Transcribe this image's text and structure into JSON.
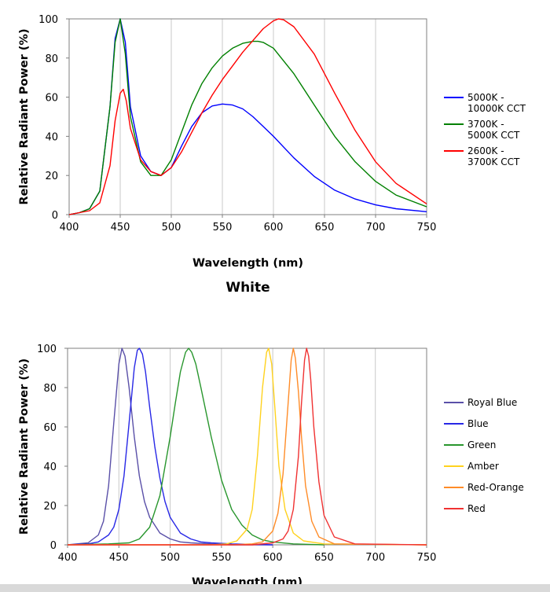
{
  "chart_data": [
    {
      "type": "line",
      "title": "White",
      "xlabel": "Wavelength (nm)",
      "ylabel": "Relative Radiant Power (%)",
      "xlim": [
        400,
        750
      ],
      "ylim": [
        0,
        100
      ],
      "xticks": [
        400,
        450,
        500,
        550,
        600,
        650,
        700,
        750
      ],
      "yticks": [
        0,
        20,
        40,
        60,
        80,
        100
      ],
      "grid": "vertical",
      "legend_position": "right",
      "series": [
        {
          "name": "5000K - 10000K CCT",
          "legend_lines": [
            "5000K -",
            "10000K CCT"
          ],
          "color": "#0000ff",
          "x": [
            400,
            410,
            420,
            430,
            440,
            445,
            450,
            455,
            460,
            470,
            480,
            490,
            500,
            510,
            520,
            530,
            540,
            550,
            560,
            570,
            580,
            590,
            600,
            620,
            640,
            660,
            680,
            700,
            720,
            750
          ],
          "y": [
            0,
            1,
            3,
            12,
            55,
            90,
            100,
            88,
            55,
            30,
            22,
            20,
            24,
            35,
            45,
            52,
            55.5,
            56.5,
            56,
            54,
            50,
            45,
            40,
            29,
            19.5,
            12.5,
            8,
            5,
            3,
            1.5
          ]
        },
        {
          "name": "3700K - 5000K CCT",
          "legend_lines": [
            "3700K -",
            "5000K CCT"
          ],
          "color": "#008000",
          "x": [
            400,
            410,
            420,
            430,
            440,
            445,
            450,
            455,
            460,
            470,
            480,
            490,
            500,
            510,
            520,
            530,
            540,
            550,
            560,
            570,
            580,
            585,
            590,
            600,
            620,
            640,
            660,
            680,
            700,
            720,
            750
          ],
          "y": [
            0,
            1,
            3,
            12,
            55,
            88,
            100,
            82,
            50,
            27,
            20,
            20,
            28,
            42,
            56,
            67,
            75,
            81,
            85,
            87.5,
            88.5,
            88.5,
            88,
            85,
            72,
            56,
            40,
            27,
            17,
            10,
            4
          ]
        },
        {
          "name": "2600K - 3700K CCT",
          "legend_lines": [
            "2600K -",
            "3700K CCT"
          ],
          "color": "#ff0000",
          "x": [
            400,
            410,
            420,
            430,
            440,
            445,
            450,
            453,
            456,
            460,
            470,
            480,
            490,
            500,
            510,
            520,
            530,
            540,
            550,
            560,
            570,
            580,
            590,
            600,
            605,
            610,
            620,
            640,
            660,
            680,
            700,
            720,
            750
          ],
          "y": [
            0,
            1,
            2,
            6,
            25,
            48,
            62,
            64,
            58,
            44,
            28,
            22,
            20,
            24,
            32,
            42,
            52,
            61,
            69,
            76,
            83,
            89,
            95,
            99,
            100,
            99.5,
            96,
            82,
            62,
            43,
            27,
            16,
            5.5
          ]
        }
      ]
    },
    {
      "type": "line",
      "title": "",
      "xlabel": "Wavelength (nm)",
      "ylabel": "Relative Radiant Power (%)",
      "xlim": [
        400,
        750
      ],
      "ylim": [
        0,
        100
      ],
      "xticks": [
        400,
        450,
        500,
        550,
        600,
        650,
        700,
        750
      ],
      "yticks": [
        0,
        20,
        40,
        60,
        80,
        100
      ],
      "grid": "vertical",
      "legend_position": "right",
      "series": [
        {
          "name": "Royal Blue",
          "color": "#5a50a8",
          "x": [
            400,
            420,
            430,
            435,
            440,
            445,
            450,
            453,
            456,
            460,
            465,
            470,
            475,
            480,
            490,
            500,
            510,
            520,
            540,
            560,
            600
          ],
          "y": [
            0,
            1,
            5,
            12,
            30,
            62,
            92,
            100,
            96,
            80,
            55,
            35,
            22,
            14,
            6,
            3,
            1.5,
            1,
            0.5,
            0,
            0
          ]
        },
        {
          "name": "Blue",
          "color": "#2828e6",
          "x": [
            400,
            420,
            430,
            440,
            445,
            450,
            455,
            460,
            465,
            468,
            470,
            473,
            476,
            480,
            485,
            490,
            495,
            500,
            510,
            520,
            530,
            540,
            560,
            600
          ],
          "y": [
            0,
            0.5,
            1.5,
            5,
            9,
            18,
            35,
            62,
            90,
            99,
            100,
            97,
            88,
            70,
            50,
            34,
            22,
            14,
            6,
            3,
            1.5,
            1,
            0.5,
            0
          ]
        },
        {
          "name": "Green",
          "color": "#28962d",
          "x": [
            400,
            440,
            460,
            470,
            480,
            490,
            500,
            505,
            510,
            515,
            518,
            521,
            525,
            530,
            540,
            550,
            560,
            570,
            580,
            590,
            600,
            620,
            650
          ],
          "y": [
            0,
            0.5,
            1,
            3,
            9,
            25,
            55,
            72,
            88,
            98,
            100,
            98,
            92,
            80,
            55,
            33,
            18,
            10,
            5,
            2.5,
            1.5,
            0.5,
            0
          ]
        },
        {
          "name": "Amber",
          "color": "#ffd21e",
          "x": [
            400,
            540,
            555,
            565,
            575,
            580,
            585,
            590,
            594,
            596,
            599,
            602,
            606,
            612,
            620,
            630,
            650,
            750
          ],
          "y": [
            0,
            0,
            0.5,
            2,
            8,
            18,
            45,
            80,
            98,
            100,
            92,
            70,
            40,
            18,
            6,
            2,
            0.5,
            0
          ]
        },
        {
          "name": "Red-Orange",
          "color": "#ff8c28",
          "x": [
            400,
            560,
            580,
            590,
            600,
            605,
            610,
            615,
            618,
            620,
            622,
            625,
            628,
            632,
            638,
            645,
            660,
            750
          ],
          "y": [
            0,
            0,
            0.5,
            1.5,
            7,
            16,
            36,
            72,
            94,
            100,
            95,
            78,
            55,
            30,
            12,
            4,
            0.5,
            0
          ]
        },
        {
          "name": "Red",
          "color": "#f03232",
          "x": [
            400,
            580,
            600,
            610,
            615,
            620,
            625,
            628,
            631,
            633,
            635,
            637,
            640,
            645,
            650,
            660,
            680,
            750
          ],
          "y": [
            0,
            0,
            1,
            3,
            7,
            18,
            45,
            72,
            94,
            100,
            96,
            84,
            60,
            32,
            15,
            4,
            0.5,
            0
          ]
        }
      ]
    }
  ]
}
